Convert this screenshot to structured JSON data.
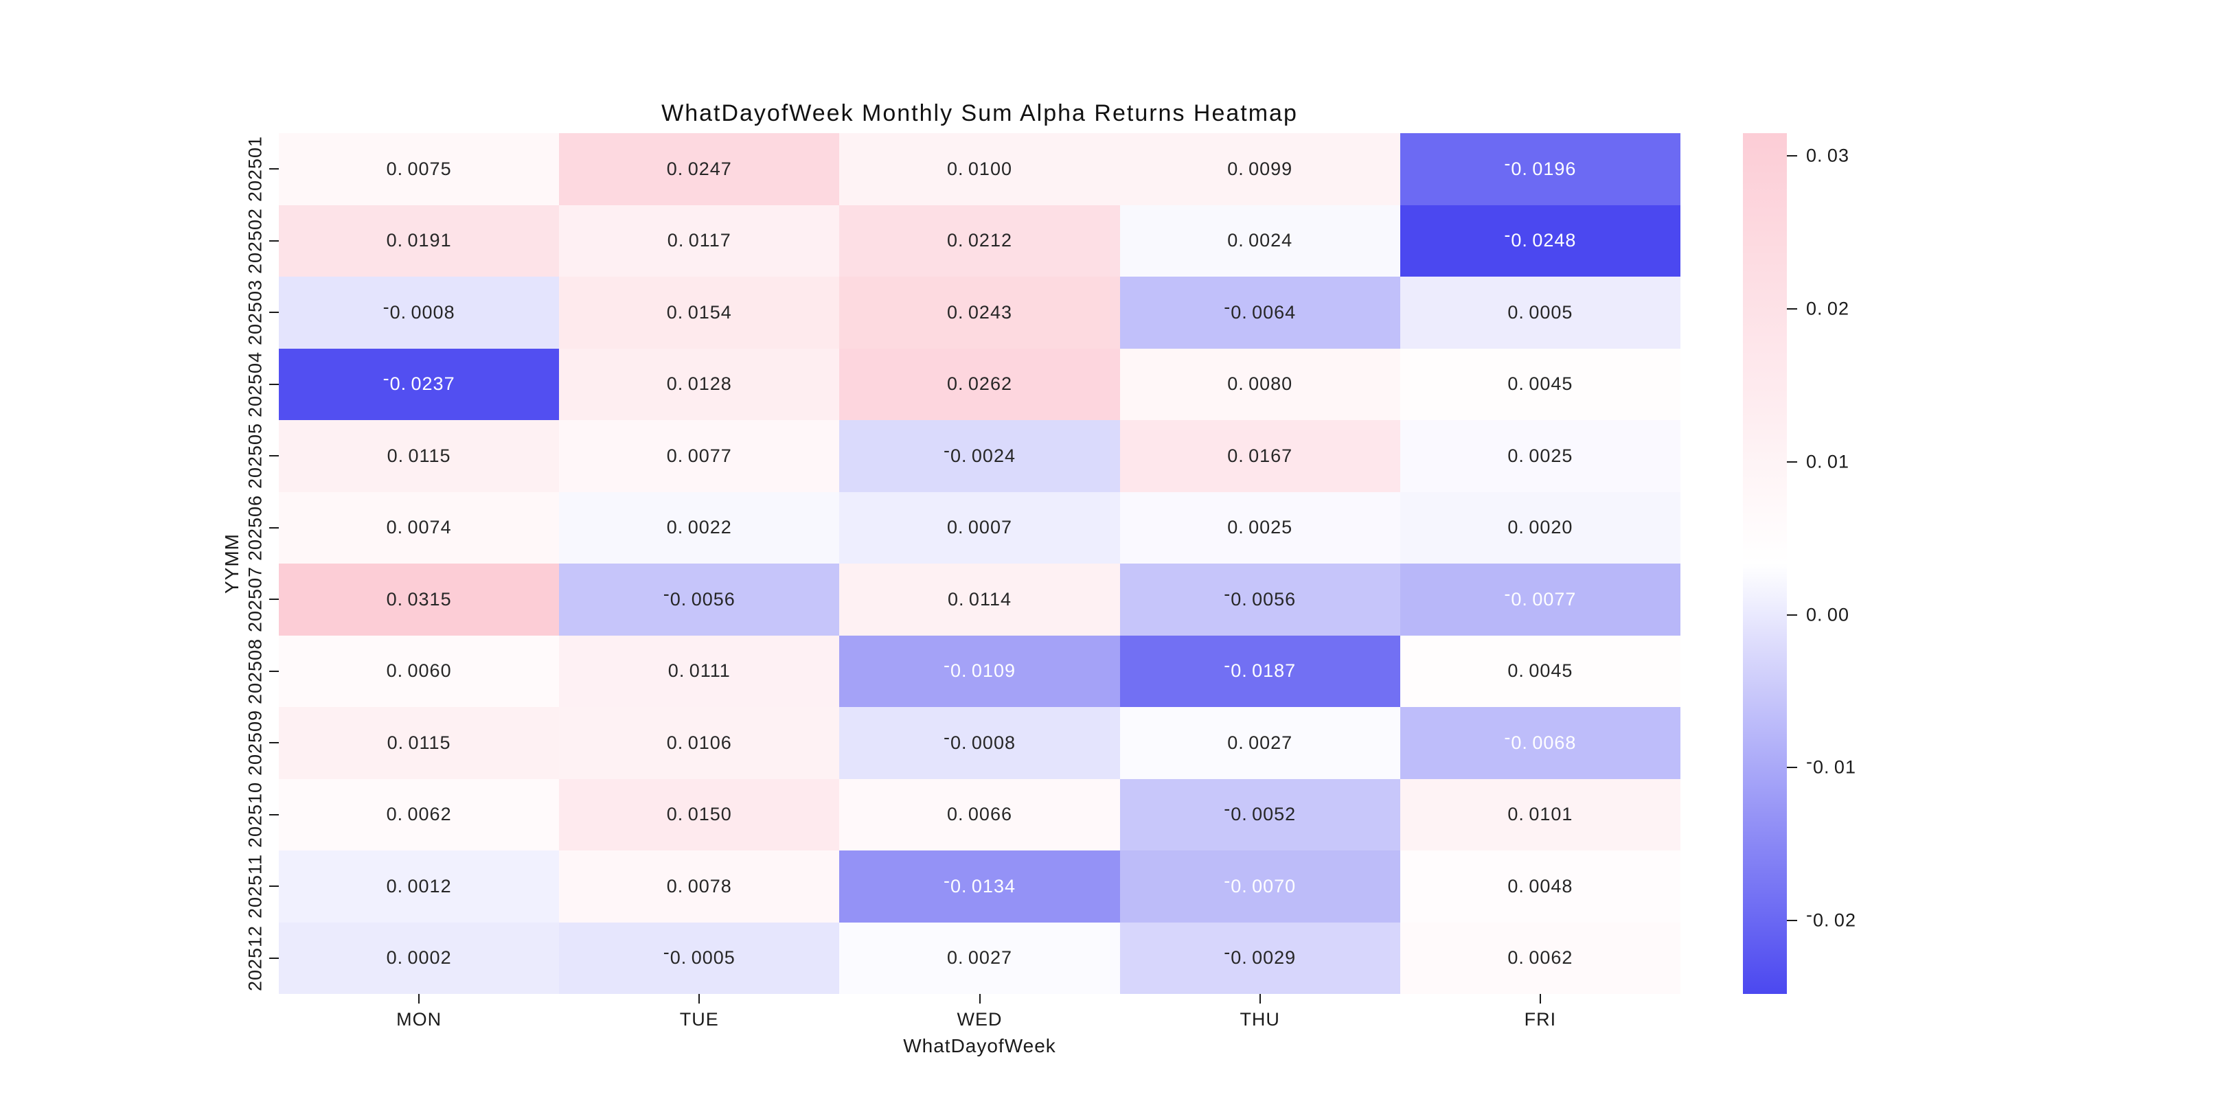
{
  "chart_data": {
    "type": "heatmap",
    "title": "WhatDayofWeek Monthly Sum Alpha Returns Heatmap",
    "xlabel": "WhatDayofWeek",
    "ylabel": "YYMM",
    "columns": [
      "MON",
      "TUE",
      "WED",
      "THU",
      "FRI"
    ],
    "rows": [
      "202501",
      "202502",
      "202503",
      "202504",
      "202505",
      "202506",
      "202507",
      "202508",
      "202509",
      "202510",
      "202511",
      "202512"
    ],
    "values": [
      [
        0.0075,
        0.0247,
        0.01,
        0.0099,
        -0.0196
      ],
      [
        0.0191,
        0.0117,
        0.0212,
        0.0024,
        -0.0248
      ],
      [
        -0.0008,
        0.0154,
        0.0243,
        -0.0064,
        0.0005
      ],
      [
        -0.0237,
        0.0128,
        0.0262,
        0.008,
        0.0045
      ],
      [
        0.0115,
        0.0077,
        -0.0024,
        0.0167,
        0.0025
      ],
      [
        0.0074,
        0.0022,
        0.0007,
        0.0025,
        0.002
      ],
      [
        0.0315,
        -0.0056,
        0.0114,
        -0.0056,
        -0.0077
      ],
      [
        0.006,
        0.0111,
        -0.0109,
        -0.0187,
        0.0045
      ],
      [
        0.0115,
        0.0106,
        -0.0008,
        0.0027,
        -0.0068
      ],
      [
        0.0062,
        0.015,
        0.0066,
        -0.0052,
        0.0101
      ],
      [
        0.0012,
        0.0078,
        -0.0134,
        -0.007,
        0.0048
      ],
      [
        0.0002,
        -0.0005,
        0.0027,
        -0.0029,
        0.0062
      ]
    ],
    "annotation_decimals": 4,
    "grid": false,
    "legend_position": "right-colorbar",
    "colorbar": {
      "tick_labels": [
        "0.03",
        "0.02",
        "0.01",
        "0.00",
        "-0.01",
        "-0.02"
      ],
      "tick_values": [
        0.03,
        0.02,
        0.01,
        0.0,
        -0.01,
        -0.02
      ],
      "tick_decimals": 2
    },
    "color_scale": {
      "vmin": -0.0248,
      "vmax": 0.0315,
      "min_color": "#4B48F0",
      "mid_color": "#FFFFFF",
      "max_color": "#FCCDD6",
      "annotation_dark_text": "#262626",
      "annotation_light_text": "#FFFFFF",
      "white_text_threshold_t": 0.322
    }
  }
}
